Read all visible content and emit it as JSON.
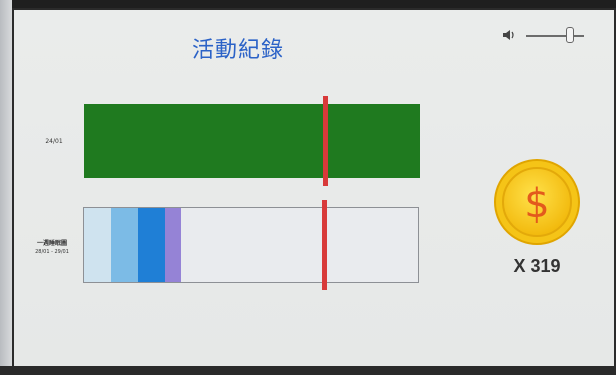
{
  "title": "活動紀錄",
  "volume": {
    "icon": "speaker-icon",
    "level": 0.75
  },
  "rows": [
    {
      "label_lines": [
        "24/01"
      ]
    },
    {
      "label_lines": [
        "一週睡眠圖",
        "28/01 - 29/01"
      ]
    }
  ],
  "bar1": {
    "color": "#1f7a1f",
    "marker_position": 0.72
  },
  "bar2": {
    "segments": [
      {
        "name": "light-blue",
        "color": "#cfe3ef",
        "start": 0.0,
        "end": 0.08
      },
      {
        "name": "sky-blue",
        "color": "#7cbbe6",
        "start": 0.08,
        "end": 0.16
      },
      {
        "name": "blue",
        "color": "#1f7fd6",
        "start": 0.16,
        "end": 0.24
      },
      {
        "name": "lavender",
        "color": "#9583d6",
        "start": 0.24,
        "end": 0.29
      }
    ],
    "marker_position": 0.72
  },
  "marker_color": "#d83a3a",
  "coin": {
    "icon": "dollar-coin-icon",
    "symbol": "$",
    "count_text": "X 319"
  }
}
